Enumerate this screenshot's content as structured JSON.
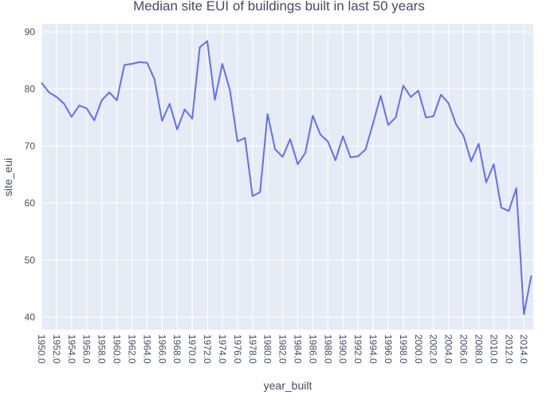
{
  "chart_data": {
    "type": "line",
    "title": "Median site EUI of buildings built in last 50 years",
    "xlabel": "year_built",
    "ylabel": "site_eui",
    "xlim": [
      1950,
      2015.25
    ],
    "ylim": [
      37.8,
      91.4
    ],
    "grid": true,
    "x_ticks": [
      "1950.0",
      "1952.0",
      "1954.0",
      "1956.0",
      "1958.0",
      "1960.0",
      "1962.0",
      "1964.0",
      "1966.0",
      "1968.0",
      "1970.0",
      "1972.0",
      "1974.0",
      "1976.0",
      "1978.0",
      "1980.0",
      "1982.0",
      "1984.0",
      "1986.0",
      "1988.0",
      "1990.0",
      "1992.0",
      "1994.0",
      "1996.0",
      "1998.0",
      "2000.0",
      "2002.0",
      "2004.0",
      "2006.0",
      "2008.0",
      "2010.0",
      "2012.0",
      "2014.0"
    ],
    "y_ticks": [
      "40",
      "50",
      "60",
      "70",
      "80",
      "90"
    ],
    "line_color": "#636efa",
    "plot_bg": "#e5ecf6",
    "x": [
      1950,
      1951,
      1952,
      1953,
      1954,
      1955,
      1956,
      1957,
      1958,
      1959,
      1960,
      1961,
      1962,
      1963,
      1964,
      1965,
      1966,
      1967,
      1968,
      1969,
      1970,
      1971,
      1972,
      1973,
      1974,
      1975,
      1976,
      1977,
      1978,
      1979,
      1980,
      1981,
      1982,
      1983,
      1984,
      1985,
      1986,
      1987,
      1988,
      1989,
      1990,
      1991,
      1992,
      1993,
      1994,
      1995,
      1996,
      1997,
      1998,
      1999,
      2000,
      2001,
      2002,
      2003,
      2004,
      2005,
      2006,
      2007,
      2008,
      2009,
      2010,
      2011,
      2012,
      2013,
      2014,
      2015
    ],
    "values": [
      81.1,
      79.4,
      78.6,
      77.4,
      75.1,
      77.1,
      76.6,
      74.5,
      78.0,
      79.4,
      78.0,
      84.2,
      84.4,
      84.7,
      84.6,
      81.7,
      74.4,
      77.4,
      72.9,
      76.4,
      74.8,
      87.3,
      88.4,
      78.1,
      84.4,
      79.8,
      70.8,
      71.4,
      61.2,
      61.9,
      75.6,
      69.4,
      68.1,
      71.2,
      66.8,
      68.8,
      75.3,
      72.0,
      70.8,
      67.5,
      71.7,
      68.0,
      68.2,
      69.4,
      74.0,
      78.8,
      73.7,
      75.0,
      80.6,
      78.6,
      79.7,
      75.0,
      75.2,
      79.0,
      77.5,
      73.8,
      71.8,
      67.3,
      70.4,
      63.6,
      66.8,
      59.2,
      58.6,
      62.6,
      40.5,
      47.3
    ]
  }
}
